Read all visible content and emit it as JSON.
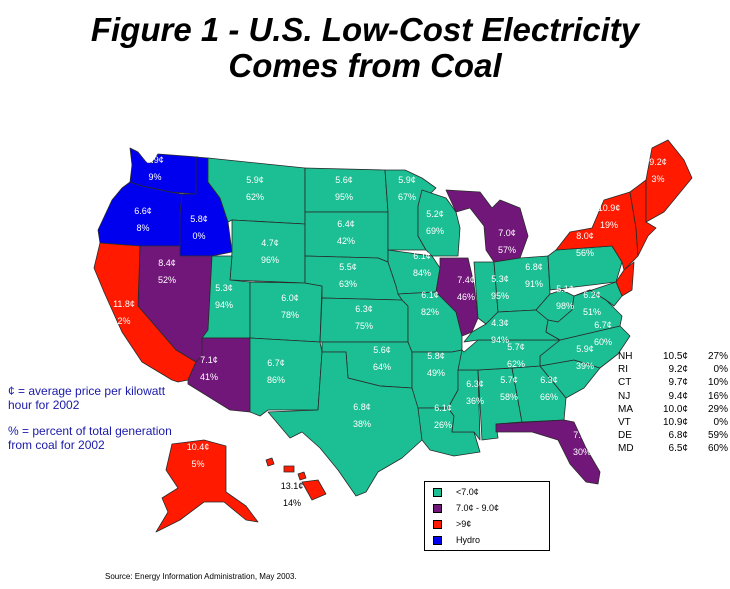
{
  "title": {
    "line1": "Figure 1 - U.S. Low-Cost Electricity",
    "line2": "Comes from Coal"
  },
  "colors": {
    "low": "#1bbf93",
    "mid": "#72177a",
    "high": "#ff1a00",
    "hydro": "#0000ee"
  },
  "states": {
    "WA": {
      "price": "5.9¢",
      "pct": "9%"
    },
    "OR": {
      "price": "6.6¢",
      "pct": "8%"
    },
    "ID": {
      "price": "5.8¢",
      "pct": "0%"
    },
    "MT": {
      "price": "5.9¢",
      "pct": "62%"
    },
    "ND": {
      "price": "5.6¢",
      "pct": "95%"
    },
    "MN": {
      "price": "5.9¢",
      "pct": "67%"
    },
    "WI": {
      "price": "5.2¢",
      "pct": "69%"
    },
    "MI": {
      "price": "7.0¢",
      "pct": "57%"
    },
    "SD": {
      "price": "6.4¢",
      "pct": "42%"
    },
    "WY": {
      "price": "4.7¢",
      "pct": "96%"
    },
    "NV": {
      "price": "8.4¢",
      "pct": "52%"
    },
    "CA": {
      "price": "11.8¢",
      "pct": "2%"
    },
    "UT": {
      "price": "5.3¢",
      "pct": "94%"
    },
    "CO": {
      "price": "6.0¢",
      "pct": "78%"
    },
    "NE": {
      "price": "5.5¢",
      "pct": "63%"
    },
    "IA": {
      "price": "6.1¢",
      "pct": "84%"
    },
    "IL": {
      "price": "7.4¢",
      "pct": "46%"
    },
    "KS": {
      "price": "6.3¢",
      "pct": "75%"
    },
    "MO": {
      "price": "6.1¢",
      "pct": "82%"
    },
    "AZ": {
      "price": "7.1¢",
      "pct": "41%"
    },
    "NM": {
      "price": "6.7¢",
      "pct": "86%"
    },
    "OK": {
      "price": "5.6¢",
      "pct": "64%"
    },
    "AR": {
      "price": "5.8¢",
      "pct": "49%"
    },
    "TX": {
      "price": "6.8¢",
      "pct": "38%"
    },
    "LA": {
      "price": "6.1¢",
      "pct": "26%"
    },
    "MS": {
      "price": "6.3¢",
      "pct": "36%"
    },
    "AL": {
      "price": "5.7¢",
      "pct": "58%"
    },
    "GA": {
      "price": "6.3¢",
      "pct": "66%"
    },
    "FL": {
      "price": "7.3¢",
      "pct": "30%"
    },
    "SC": {
      "price": "5.9¢",
      "pct": "39%"
    },
    "NC": {
      "price": "6.7¢",
      "pct": "60%"
    },
    "TN": {
      "price": "5.7¢",
      "pct": "62%"
    },
    "KY": {
      "price": "4.3¢",
      "pct": "94%"
    },
    "IN": {
      "price": "5.3¢",
      "pct": "95%"
    },
    "OH": {
      "price": "6.8¢",
      "pct": "91%"
    },
    "WV": {
      "price": "5.1¢",
      "pct": "98%"
    },
    "VA": {
      "price": "6.2¢",
      "pct": "51%"
    },
    "PA": {
      "price": "8.0¢",
      "pct": "56%"
    },
    "NY": {
      "price": "10.9¢",
      "pct": "19%"
    },
    "ME": {
      "price": "9.2¢",
      "pct": "3%"
    },
    "AK": {
      "price": "10.4¢",
      "pct": "5%"
    },
    "HI": {
      "price": "13.1¢",
      "pct": "14%"
    }
  },
  "notes": {
    "price_note": "¢ = average price per kilowatt hour for 2002",
    "pct_note": "% = percent of total generation from coal for 2002"
  },
  "ne_table": [
    {
      "state": "NH",
      "price": "10.5¢",
      "pct": "27%"
    },
    {
      "state": "RI",
      "price": "9.2¢",
      "pct": "0%"
    },
    {
      "state": "CT",
      "price": "9.7¢",
      "pct": "10%"
    },
    {
      "state": "NJ",
      "price": "9.4¢",
      "pct": "16%"
    },
    {
      "state": "MA",
      "price": "10.0¢",
      "pct": "29%"
    },
    {
      "state": "VT",
      "price": "10.9¢",
      "pct": "0%"
    },
    {
      "state": "DE",
      "price": "6.8¢",
      "pct": "59%"
    },
    {
      "state": "MD",
      "price": "6.5¢",
      "pct": "60%"
    }
  ],
  "legend": [
    {
      "label": "<7.0¢",
      "color": "#1bbf93"
    },
    {
      "label": "7.0¢ - 9.0¢",
      "color": "#72177a"
    },
    {
      "label": ">9¢",
      "color": "#ff1a00"
    },
    {
      "label": "Hydro",
      "color": "#0000ee"
    }
  ],
  "source": "Source: Energy Information Administration, May 2003."
}
